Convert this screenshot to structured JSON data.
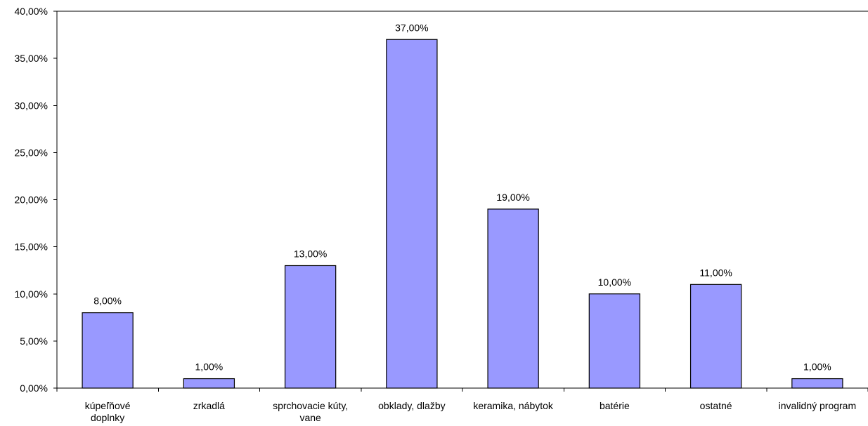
{
  "chart_data": {
    "type": "bar",
    "title": "",
    "xlabel": "",
    "ylabel": "",
    "categories": [
      "kúpeľňové doplnky",
      "zrkadlá",
      "sprchovacie kúty, vane",
      "obklady, dlažby",
      "keramika, nábytok",
      "batérie",
      "ostatné",
      "invalidný program"
    ],
    "category_lines": [
      [
        "kúpeľňové",
        "doplnky"
      ],
      [
        "zrkadlá"
      ],
      [
        "sprchovacie kúty,",
        "vane"
      ],
      [
        "obklady, dlažby"
      ],
      [
        "keramika, nábytok"
      ],
      [
        "batérie"
      ],
      [
        "ostatné"
      ],
      [
        "invalidný program"
      ]
    ],
    "values": [
      8,
      1,
      13,
      37,
      19,
      10,
      11,
      1
    ],
    "data_labels": [
      "8,00%",
      "1,00%",
      "13,00%",
      "37,00%",
      "19,00%",
      "10,00%",
      "11,00%",
      "1,00%"
    ],
    "ylim": [
      0,
      40
    ],
    "y_ticks": [
      0,
      5,
      10,
      15,
      20,
      25,
      30,
      35,
      40
    ],
    "y_tick_labels": [
      "0,00%",
      "5,00%",
      "10,00%",
      "15,00%",
      "20,00%",
      "25,00%",
      "30,00%",
      "35,00%",
      "40,00%"
    ],
    "grid": false,
    "legend": "none",
    "colors": {
      "bar_fill": "#9999ff",
      "bar_stroke": "#000000",
      "axis": "#000000"
    }
  }
}
